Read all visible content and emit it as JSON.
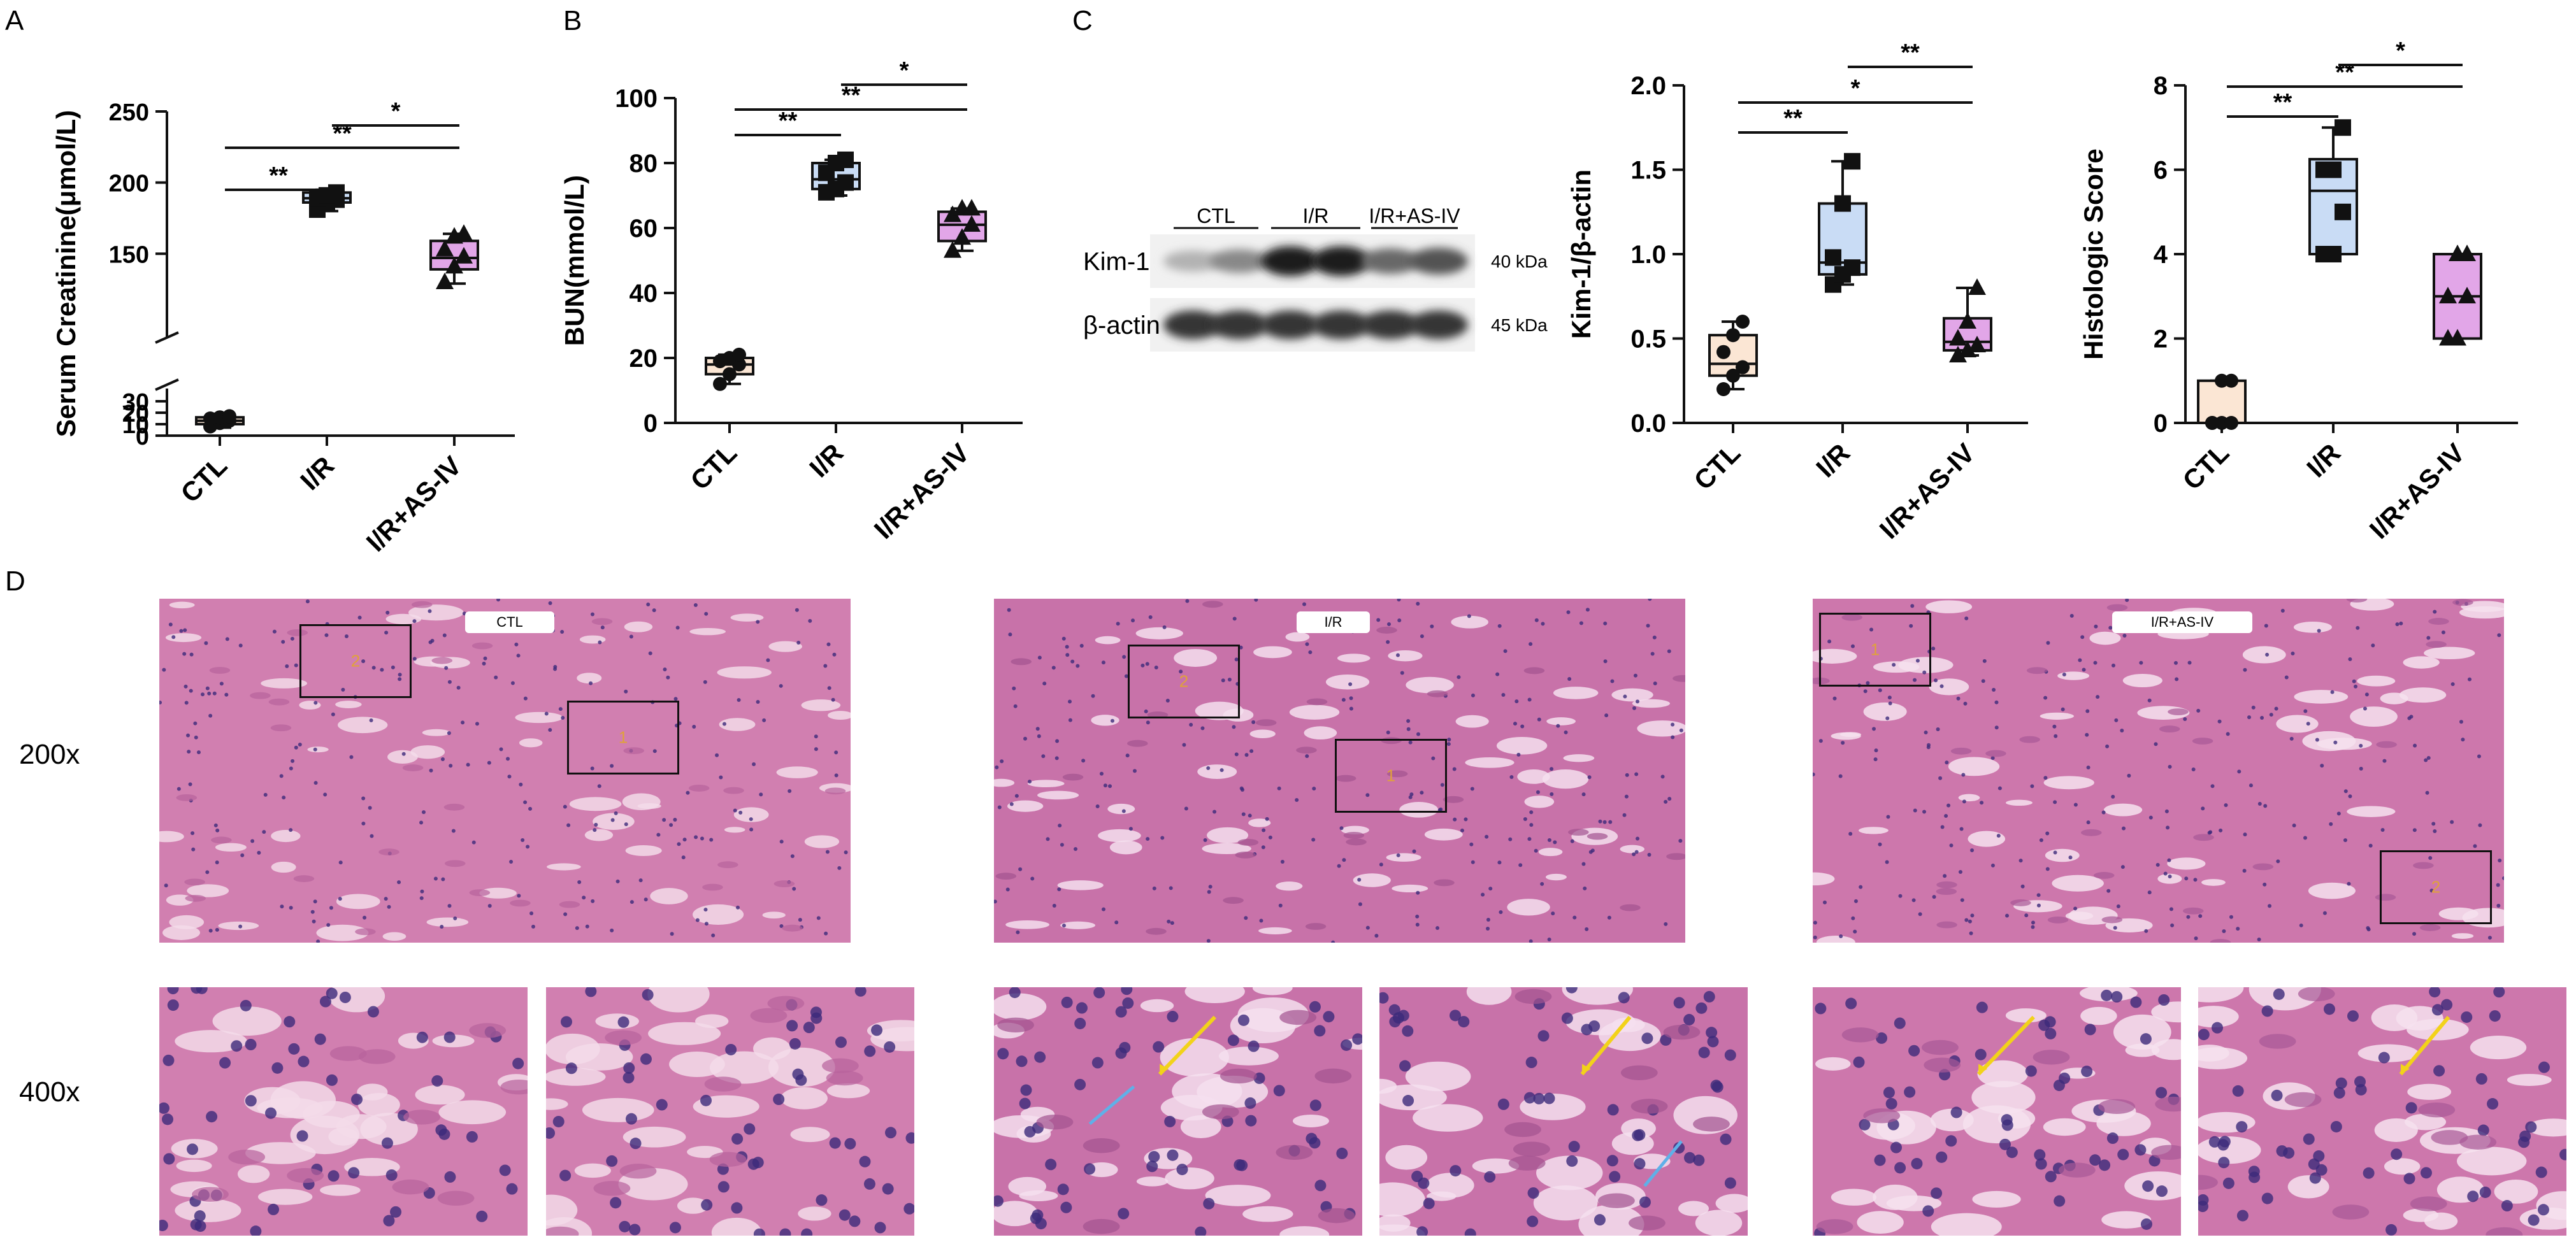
{
  "panel_labels": {
    "A": "A",
    "B": "B",
    "C": "C",
    "D": "D"
  },
  "chart_data": [
    {
      "id": "A",
      "type": "boxplot",
      "ylabel": "Serum Creatinine(μmol/L)",
      "categories": [
        "CTL",
        "I/R",
        "I/R+AS-IV"
      ],
      "colors": [
        "#fbe6d4",
        "#c9dcf5",
        "#e2a6e8"
      ],
      "axis_break": true,
      "lower_ticks": [
        0,
        10,
        20,
        30
      ],
      "upper_ticks": [
        150,
        200,
        250
      ],
      "boxes": [
        {
          "min": 7,
          "q1": 10,
          "median": 13,
          "q3": 16,
          "max": 19
        },
        {
          "min": 180,
          "q1": 186,
          "median": 189,
          "q3": 193,
          "max": 195
        },
        {
          "min": 129,
          "q1": 139,
          "median": 147,
          "q3": 159,
          "max": 164
        }
      ],
      "points": [
        [
          8,
          11,
          13,
          15,
          16,
          17
        ],
        [
          181,
          186,
          188,
          189,
          191,
          193
        ],
        [
          130,
          141,
          148,
          153,
          162,
          164
        ]
      ],
      "markers": [
        "circle",
        "square",
        "triangle"
      ],
      "significance": [
        {
          "from": 0,
          "to": 1,
          "label": "**"
        },
        {
          "from": 0,
          "to": 2,
          "label": "**"
        },
        {
          "from": 1,
          "to": 2,
          "label": "*"
        }
      ]
    },
    {
      "id": "B",
      "type": "boxplot",
      "ylabel": "BUN(mmol/L)",
      "categories": [
        "CTL",
        "I/R",
        "I/R+AS-IV"
      ],
      "colors": [
        "#fbe6d4",
        "#c9dcf5",
        "#e2a6e8"
      ],
      "ylim": [
        0,
        100
      ],
      "yticks": [
        0,
        20,
        40,
        60,
        80,
        100
      ],
      "boxes": [
        {
          "min": 12,
          "q1": 15,
          "median": 18,
          "q3": 20,
          "max": 21
        },
        {
          "min": 70,
          "q1": 72,
          "median": 75,
          "q3": 80,
          "max": 81
        },
        {
          "min": 53,
          "q1": 56,
          "median": 61,
          "q3": 65,
          "max": 66
        }
      ],
      "points": [
        [
          12,
          15,
          18,
          19,
          20,
          21
        ],
        [
          71,
          72,
          74,
          77,
          80,
          81
        ],
        [
          53,
          57,
          61,
          64,
          66,
          66
        ]
      ],
      "markers": [
        "circle",
        "square",
        "triangle"
      ],
      "significance": [
        {
          "from": 0,
          "to": 1,
          "label": "**"
        },
        {
          "from": 0,
          "to": 2,
          "label": "**"
        },
        {
          "from": 1,
          "to": 2,
          "label": "*"
        }
      ]
    },
    {
      "id": "C-kim",
      "type": "boxplot",
      "ylabel": "Kim-1/β-actin",
      "categories": [
        "CTL",
        "I/R",
        "I/R+AS-IV"
      ],
      "colors": [
        "#fbe6d4",
        "#c9dcf5",
        "#e2a6e8"
      ],
      "ylim": [
        0,
        2.0
      ],
      "yticks": [
        0.0,
        0.5,
        1.0,
        1.5,
        2.0
      ],
      "tick_decimals": 1,
      "boxes": [
        {
          "min": 0.2,
          "q1": 0.28,
          "median": 0.35,
          "q3": 0.52,
          "max": 0.6
        },
        {
          "min": 0.82,
          "q1": 0.88,
          "median": 0.95,
          "q3": 1.3,
          "max": 1.55
        },
        {
          "min": 0.4,
          "q1": 0.43,
          "median": 0.48,
          "q3": 0.62,
          "max": 0.8
        }
      ],
      "points": [
        [
          0.2,
          0.28,
          0.33,
          0.42,
          0.52,
          0.6
        ],
        [
          0.82,
          0.88,
          0.92,
          0.98,
          1.3,
          1.55
        ],
        [
          0.4,
          0.43,
          0.46,
          0.5,
          0.6,
          0.8
        ]
      ],
      "markers": [
        "circle",
        "square",
        "triangle"
      ],
      "significance": [
        {
          "from": 0,
          "to": 1,
          "label": "**"
        },
        {
          "from": 0,
          "to": 2,
          "label": "*"
        },
        {
          "from": 1,
          "to": 2,
          "label": "**"
        }
      ]
    },
    {
      "id": "C-histo",
      "type": "boxplot",
      "ylabel": "Histologic Score",
      "categories": [
        "CTL",
        "I/R",
        "I/R+AS-IV"
      ],
      "colors": [
        "#fbe6d4",
        "#c9dcf5",
        "#e2a6e8"
      ],
      "ylim": [
        0,
        8
      ],
      "yticks": [
        0,
        2,
        4,
        6,
        8
      ],
      "boxes": [
        {
          "min": 0,
          "q1": 0,
          "median": 0,
          "q3": 1,
          "max": 1
        },
        {
          "min": 4,
          "q1": 4,
          "median": 5.5,
          "q3": 6.25,
          "max": 7
        },
        {
          "min": 2,
          "q1": 2,
          "median": 3,
          "q3": 4,
          "max": 4
        }
      ],
      "points": [
        [
          0,
          0,
          0,
          0,
          1,
          1
        ],
        [
          4,
          4,
          5,
          6,
          6,
          7
        ],
        [
          2,
          2,
          3,
          3,
          4,
          4
        ]
      ],
      "markers": [
        "circle",
        "square",
        "triangle"
      ],
      "significance": [
        {
          "from": 0,
          "to": 1,
          "label": "**"
        },
        {
          "from": 0,
          "to": 2,
          "label": "**"
        },
        {
          "from": 1,
          "to": 2,
          "label": "*"
        }
      ]
    }
  ],
  "western_blot": {
    "groups": [
      "CTL",
      "I/R",
      "I/R+AS-IV"
    ],
    "rows": [
      {
        "label": "Kim-1",
        "kda": "40 kDa",
        "intensity": [
          0.25,
          0.45,
          0.95,
          0.95,
          0.6,
          0.7
        ]
      },
      {
        "label": "β-actin",
        "kda": "45 kDa",
        "intensity": [
          0.85,
          0.85,
          0.85,
          0.85,
          0.85,
          0.85
        ]
      }
    ]
  },
  "histology": {
    "magnifications": [
      "200x",
      "400x"
    ],
    "groups": [
      {
        "tag": "CTL",
        "rois": [
          "2",
          "1"
        ],
        "base": "#d17fb0",
        "dark": "#b8639d",
        "light": "#f3dbe9"
      },
      {
        "tag": "I/R",
        "rois": [
          "2",
          "1"
        ],
        "base": "#c872a9",
        "dark": "#a35390",
        "light": "#f5dfee"
      },
      {
        "tag": "I/R+AS-IV",
        "rois": [
          "1",
          "2"
        ],
        "base": "#cd77ac",
        "dark": "#a85897",
        "light": "#f6e2ef"
      }
    ]
  }
}
